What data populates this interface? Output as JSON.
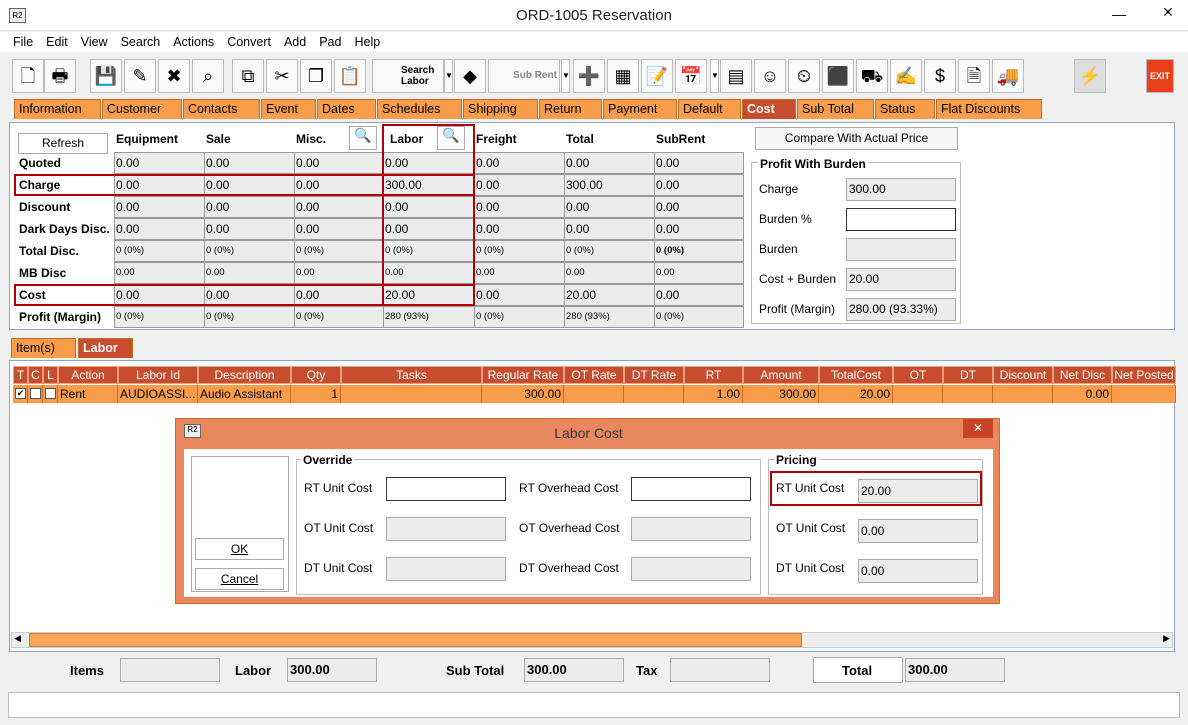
{
  "window": {
    "title": "ORD-1005 Reservation",
    "logo": "R2",
    "minimize": "—",
    "close": "✕"
  },
  "menu": [
    "File",
    "Edit",
    "View",
    "Search",
    "Actions",
    "Convert",
    "Add",
    "Pad",
    "Help"
  ],
  "toolbar": {
    "buttons": [
      {
        "name": "new-icon",
        "glyph": "🗋"
      },
      {
        "name": "print-icon",
        "glyph": "🖶"
      },
      {
        "name": "save-icon",
        "glyph": "💾"
      },
      {
        "name": "edit-icon",
        "glyph": "✎"
      },
      {
        "name": "delete-icon",
        "glyph": "✖"
      },
      {
        "name": "binoculars-icon",
        "glyph": "⌕"
      },
      {
        "name": "copy-order-icon",
        "glyph": "⧉"
      },
      {
        "name": "cut-icon",
        "glyph": "✂"
      },
      {
        "name": "copy-icon",
        "glyph": "❐"
      },
      {
        "name": "paste-icon",
        "glyph": "📋"
      }
    ],
    "search_labor": "Search Labor",
    "sub_rent": "Sub Rent",
    "exit": "EXIT",
    "more_buttons": [
      {
        "name": "add-icon",
        "glyph": "➕"
      },
      {
        "name": "grid-icon",
        "glyph": "▦"
      },
      {
        "name": "notes-icon",
        "glyph": "📝"
      },
      {
        "name": "calendar-icon",
        "glyph": "📅"
      },
      {
        "name": "hierarchy-icon",
        "glyph": "▤"
      },
      {
        "name": "smiley-icon",
        "glyph": "☺"
      },
      {
        "name": "clock-icon",
        "glyph": "⏲"
      },
      {
        "name": "box-icon",
        "glyph": "⬛"
      },
      {
        "name": "truck-person-icon",
        "glyph": "⛟"
      },
      {
        "name": "checklist-icon",
        "glyph": "✍"
      },
      {
        "name": "money-icon",
        "glyph": "$"
      },
      {
        "name": "invoice-icon",
        "glyph": "🗎"
      },
      {
        "name": "truck-icon",
        "glyph": "🚚"
      },
      {
        "name": "lightning-icon",
        "glyph": "⚡"
      }
    ]
  },
  "tabs": [
    "Information",
    "Customer",
    "Contacts",
    "Event",
    "Dates",
    "Schedules",
    "Shipping",
    "Return",
    "Payment",
    "Default",
    "Cost",
    "Sub Total",
    "Status",
    "Flat Discounts"
  ],
  "selected_tab": "Cost",
  "cost": {
    "refresh": "Refresh",
    "columns": [
      "Equipment",
      "Sale",
      "Misc.",
      "Labor",
      "Freight",
      "Total",
      "SubRent"
    ],
    "rows": [
      {
        "label": "Quoted",
        "values": [
          "0.00",
          "0.00",
          "0.00",
          "0.00",
          "0.00",
          "0.00",
          "0.00"
        ]
      },
      {
        "label": "Charge",
        "values": [
          "0.00",
          "0.00",
          "0.00",
          "300.00",
          "0.00",
          "300.00",
          "0.00"
        ]
      },
      {
        "label": "Discount",
        "values": [
          "0.00",
          "0.00",
          "0.00",
          "0.00",
          "0.00",
          "0.00",
          "0.00"
        ]
      },
      {
        "label": "Dark Days Disc.",
        "values": [
          "0.00",
          "0.00",
          "0.00",
          "0.00",
          "0.00",
          "0.00",
          "0.00"
        ]
      },
      {
        "label": "Total Disc.",
        "values": [
          "0 (0%)",
          "0 (0%)",
          "0 (0%)",
          "0 (0%)",
          "0 (0%)",
          "0 (0%)",
          "0 (0%)"
        ]
      },
      {
        "label": "MB Disc",
        "values": [
          "0.00",
          "0.00",
          "0.00",
          "0.00",
          "0.00",
          "0.00",
          "0.00"
        ]
      },
      {
        "label": "Cost",
        "values": [
          "0.00",
          "0.00",
          "0.00",
          "20.00",
          "0.00",
          "20.00",
          "0.00"
        ]
      },
      {
        "label": "Profit (Margin)",
        "values": [
          "0 (0%)",
          "0 (0%)",
          "0 (0%)",
          "280 (93%)",
          "0 (0%)",
          "280 (93%)",
          "0 (0%)"
        ]
      }
    ],
    "compare": "Compare With Actual Price",
    "burden": {
      "title": "Profit With Burden",
      "charge_label": "Charge",
      "charge": "300.00",
      "burden_pct_label": "Burden %",
      "burden_pct": "",
      "burden_label": "Burden",
      "burden": "",
      "cost_burden_label": "Cost + Burden",
      "cost_burden": "20.00",
      "profit_label": "Profit (Margin)",
      "profit": "280.00 (93.33%)"
    }
  },
  "subtabs": [
    "Item(s)",
    "Labor"
  ],
  "labor_table": {
    "columns": [
      "T",
      "C",
      "L",
      "Action",
      "Labor Id",
      "Description",
      "Qty",
      "Tasks",
      "Regular Rate",
      "OT Rate",
      "DT Rate",
      "RT",
      "Amount",
      "TotalCost",
      "OT",
      "DT",
      "Discount",
      "Net Disc",
      "Net Posted"
    ],
    "rows": [
      {
        "T": true,
        "C": false,
        "L": false,
        "cells": [
          "Rent",
          "AUDIOASSI...",
          "Audio Assistant",
          "1",
          "",
          "300.00",
          "",
          "",
          "1.00",
          "300.00",
          "20.00",
          "",
          "",
          "",
          "0.00",
          ""
        ]
      }
    ]
  },
  "dialog": {
    "title": "Labor Cost",
    "ok": "OK",
    "cancel": "Cancel",
    "override": "Override",
    "pricing": "Pricing",
    "rt_unit": "RT Unit Cost",
    "ot_unit": "OT Unit Cost",
    "dt_unit": "DT Unit Cost",
    "rt_over": "RT Overhead Cost",
    "ot_over": "OT Overhead Cost",
    "dt_over": "DT Overhead Cost",
    "p_rt": "20.00",
    "p_ot": "0.00",
    "p_dt": "0.00",
    "close": "✕"
  },
  "footer": {
    "items_label": "Items",
    "items": "",
    "labor_label": "Labor",
    "labor": "300.00",
    "subtotal_label": "Sub Total",
    "subtotal": "300.00",
    "tax_label": "Tax",
    "tax": "",
    "total_label": "Total",
    "total": "300.00"
  },
  "colors": {
    "tab": "#f99d4b",
    "tab_selected": "#c84d2e",
    "highlight": "#b00000"
  }
}
